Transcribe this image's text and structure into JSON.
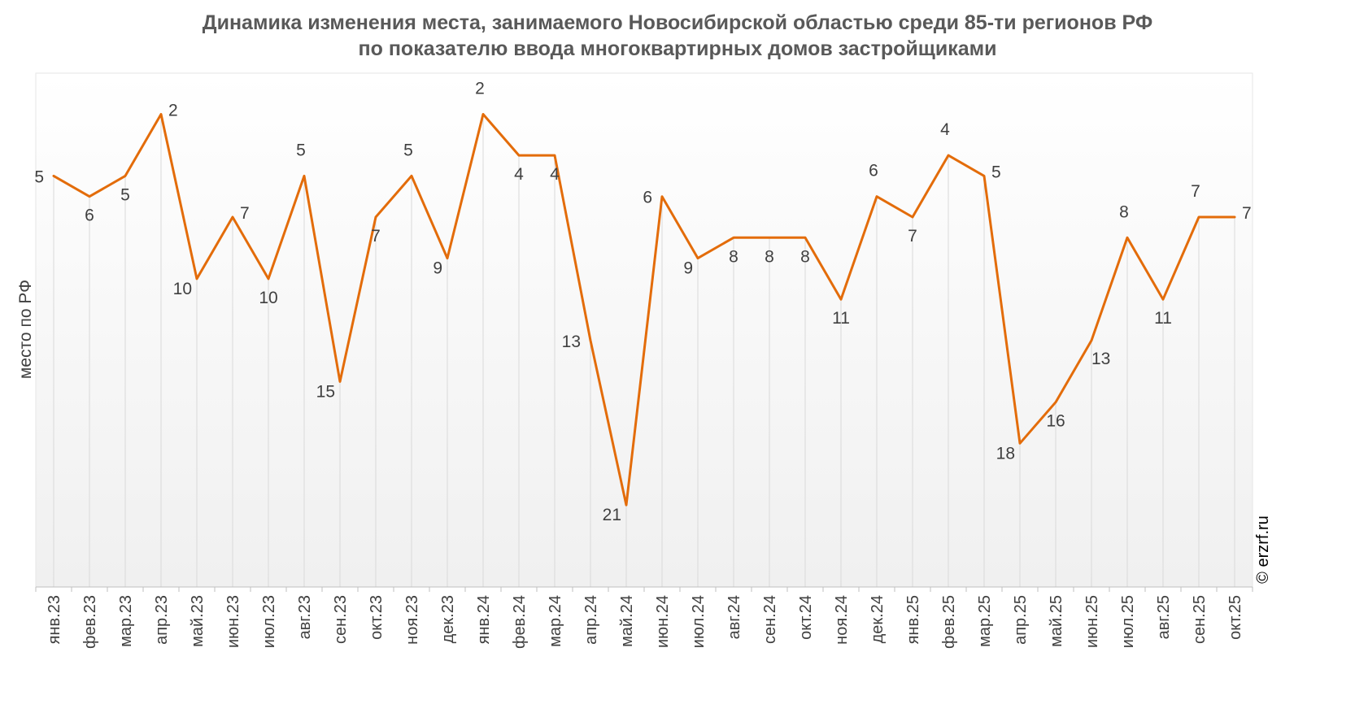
{
  "chart_data": {
    "type": "line",
    "title": [
      "Динамика изменения места, занимаемого Новосибирской областью среди 85-ти регионов РФ",
      "по показателю ввода многоквартирных домов застройщиками"
    ],
    "xlabel": "",
    "ylabel": "место по РФ",
    "y_inverted": true,
    "ylim": [
      0,
      25
    ],
    "grid": "vertical",
    "legend": "none",
    "categories": [
      "янв.23",
      "фев.23",
      "мар.23",
      "апр.23",
      "май.23",
      "июн.23",
      "июл.23",
      "авг.23",
      "сен.23",
      "окт.23",
      "ноя.23",
      "дек.23",
      "янв.24",
      "фев.24",
      "мар.24",
      "апр.24",
      "май.24",
      "июн.24",
      "июл.24",
      "авг.24",
      "сен.24",
      "окт.24",
      "ноя.24",
      "дек.24",
      "янв.25",
      "фев.25",
      "мар.25",
      "апр.25",
      "май.25",
      "июн.25",
      "июл.25",
      "авг.25",
      "сен.25",
      "окт.25"
    ],
    "series": [
      {
        "values": [
          5,
          6,
          5,
          2,
          10,
          7,
          10,
          5,
          15,
          7,
          5,
          9,
          2,
          4,
          4,
          13,
          21,
          6,
          9,
          8,
          8,
          8,
          11,
          6,
          7,
          4,
          5,
          18,
          16,
          13,
          8,
          11,
          7,
          7
        ],
        "color": "#E36C0A"
      }
    ],
    "data_labels": [
      {
        "text": "5",
        "pos": "left"
      },
      {
        "text": "6",
        "pos": "below"
      },
      {
        "text": "5",
        "pos": "below"
      },
      {
        "text": "2",
        "pos": "right"
      },
      {
        "text": "10",
        "pos": "below-left"
      },
      {
        "text": "7",
        "pos": "right"
      },
      {
        "text": "10",
        "pos": "below"
      },
      {
        "text": "5",
        "pos": "above"
      },
      {
        "text": "15",
        "pos": "below-left"
      },
      {
        "text": "7",
        "pos": "below"
      },
      {
        "text": "5",
        "pos": "above"
      },
      {
        "text": "9",
        "pos": "below-left"
      },
      {
        "text": "2",
        "pos": "above"
      },
      {
        "text": "4",
        "pos": "below"
      },
      {
        "text": "4",
        "pos": "below"
      },
      {
        "text": "13",
        "pos": "left"
      },
      {
        "text": "21",
        "pos": "below-left"
      },
      {
        "text": "6",
        "pos": "left"
      },
      {
        "text": "9",
        "pos": "below-left"
      },
      {
        "text": "8",
        "pos": "below"
      },
      {
        "text": "8",
        "pos": "below"
      },
      {
        "text": "8",
        "pos": "below"
      },
      {
        "text": "11",
        "pos": "below"
      },
      {
        "text": "6",
        "pos": "above"
      },
      {
        "text": "7",
        "pos": "below"
      },
      {
        "text": "4",
        "pos": "above"
      },
      {
        "text": "5",
        "pos": "right"
      },
      {
        "text": "18",
        "pos": "below-left"
      },
      {
        "text": "16",
        "pos": "below"
      },
      {
        "text": "13",
        "pos": "below-right"
      },
      {
        "text": "8",
        "pos": "above"
      },
      {
        "text": "11",
        "pos": "below"
      },
      {
        "text": "7",
        "pos": "above"
      },
      {
        "text": "7",
        "pos": "right"
      }
    ],
    "background_gradient": [
      "#FFFFFF",
      "#F0F0F0"
    ],
    "watermark": "© erzrf.ru"
  }
}
